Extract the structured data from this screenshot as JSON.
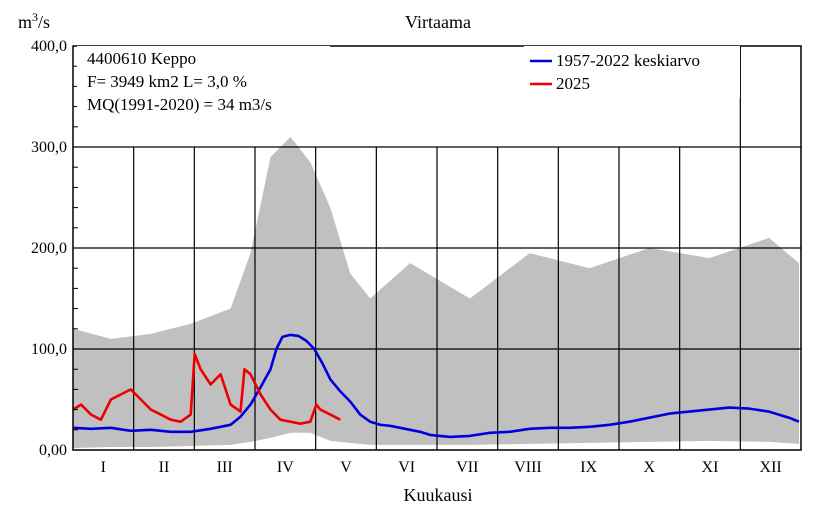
{
  "chart_data": {
    "type": "line",
    "title": "Virtaama",
    "ylabel_base": "m",
    "ylabel_sup": "3",
    "ylabel_rest": "/s",
    "xlabel": "Kuukausi",
    "ylim": [
      0,
      400
    ],
    "y_ticks": [
      {
        "value": 0,
        "label": "0,00"
      },
      {
        "value": 100,
        "label": "100,0"
      },
      {
        "value": 200,
        "label": "200,0"
      },
      {
        "value": 300,
        "label": "300,0"
      },
      {
        "value": 400,
        "label": "400,0"
      }
    ],
    "months": [
      "I",
      "II",
      "III",
      "IV",
      "V",
      "VI",
      "VII",
      "VIII",
      "IX",
      "X",
      "XI",
      "XII"
    ],
    "grid": true,
    "info_lines": [
      "4400610 Keppo",
      "F=   3949 km2 L=  3,0 %",
      "MQ(1991-2020) = 34 m3/s"
    ],
    "legend_position": "top-right",
    "series": [
      {
        "name": "1957-2022 keskiarvo",
        "color": "#0000dd",
        "unit": "day_of_year",
        "x": [
          1,
          10,
          20,
          30,
          40,
          50,
          60,
          70,
          80,
          85,
          90,
          95,
          100,
          103,
          106,
          110,
          114,
          118,
          122,
          126,
          130,
          135,
          140,
          145,
          150,
          155,
          160,
          165,
          170,
          175,
          180,
          190,
          200,
          210,
          220,
          230,
          240,
          250,
          260,
          270,
          280,
          290,
          300,
          310,
          320,
          330,
          340,
          350,
          360,
          365
        ],
        "values": [
          22,
          21,
          22,
          19,
          20,
          18,
          18,
          21,
          25,
          33,
          45,
          62,
          80,
          100,
          112,
          114,
          113,
          108,
          100,
          86,
          70,
          58,
          48,
          35,
          28,
          25,
          24,
          22,
          20,
          18,
          15,
          13,
          14,
          17,
          18,
          21,
          22,
          22,
          23,
          25,
          28,
          32,
          36,
          38,
          40,
          42,
          41,
          38,
          32,
          28
        ]
      },
      {
        "name": "2025",
        "color": "#ee0000",
        "unit": "day_of_year",
        "x": [
          1,
          5,
          10,
          15,
          20,
          25,
          30,
          35,
          40,
          45,
          50,
          55,
          60,
          62,
          65,
          70,
          75,
          80,
          85,
          87,
          90,
          95,
          100,
          105,
          110,
          115,
          120,
          123,
          125,
          130,
          135
        ],
        "values": [
          40,
          45,
          35,
          30,
          50,
          55,
          60,
          50,
          40,
          35,
          30,
          28,
          35,
          95,
          80,
          65,
          75,
          45,
          38,
          80,
          75,
          55,
          40,
          30,
          28,
          26,
          28,
          45,
          40,
          35,
          30
        ]
      }
    ],
    "background_range": {
      "name": "",
      "color": "#c0c0c0",
      "unit": "day_of_year",
      "x": [
        1,
        20,
        40,
        60,
        80,
        90,
        100,
        110,
        120,
        130,
        140,
        150,
        170,
        200,
        230,
        260,
        290,
        320,
        350,
        365
      ],
      "upper": [
        120,
        110,
        115,
        125,
        140,
        195,
        290,
        310,
        285,
        240,
        175,
        150,
        185,
        150,
        195,
        180,
        200,
        190,
        210,
        185
      ],
      "lower": [
        2,
        3,
        3,
        4,
        5,
        8,
        12,
        17,
        17,
        9,
        7,
        5,
        5,
        5,
        6,
        7,
        8,
        9,
        8,
        6
      ]
    }
  }
}
